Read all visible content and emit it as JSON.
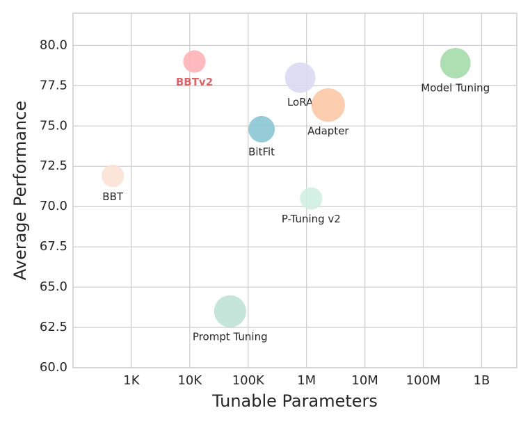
{
  "chart_data": {
    "type": "bubble",
    "x_label": "Tunable Parameters",
    "y_label": "Average Performance",
    "labels": [
      "BBTv2",
      "LoRA",
      "Adapter",
      "Model Tuning",
      "BitFit",
      "BBT",
      "P-Tuning v2",
      "Prompt Tuning"
    ],
    "x": [
      12000,
      780000,
      2350000,
      355000000,
      170000,
      480,
      1200000,
      49000
    ],
    "values": [
      79.0,
      78.0,
      76.3,
      78.9,
      74.8,
      71.9,
      70.5,
      63.5
    ],
    "sizes": [
      26,
      48,
      58,
      48,
      36,
      26,
      26,
      53
    ],
    "colors": [
      "#ffb3b8",
      "#d9d9f3",
      "#fdc8a6",
      "#a5dbab",
      "#8ac7d3",
      "#fbe1d5",
      "#d0efe2",
      "#bfe1d6"
    ],
    "highlight_index": 0,
    "highlight_color": "#d9656b",
    "x_log": true,
    "grid": true,
    "xlim": [
      100,
      4000000000
    ],
    "xticks": [
      {
        "value": 1000,
        "label": "1K"
      },
      {
        "value": 10000,
        "label": "10K"
      },
      {
        "value": 100000,
        "label": "100K"
      },
      {
        "value": 1000000,
        "label": "1M"
      },
      {
        "value": 10000000,
        "label": "10M"
      },
      {
        "value": 100000000,
        "label": "100M"
      },
      {
        "value": 1000000000,
        "label": "1B"
      }
    ],
    "ylim": [
      60,
      82
    ],
    "yticks": [
      {
        "value": 60,
        "label": "60.0"
      },
      62.5,
      {
        "value": 65,
        "label": "65.0"
      },
      67.5,
      {
        "value": 70,
        "label": "70.0"
      },
      72.5,
      {
        "value": 75,
        "label": "75.0"
      },
      77.5,
      {
        "value": 80,
        "label": "80.0"
      }
    ]
  }
}
